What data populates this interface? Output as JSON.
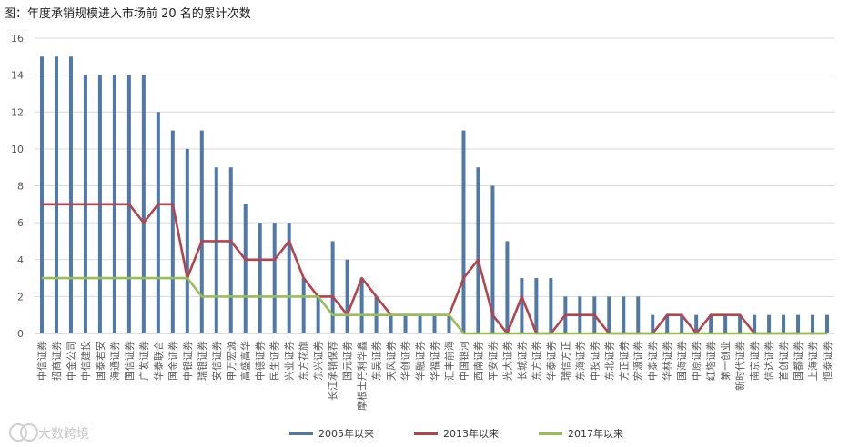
{
  "title": "图：年度承销规模进入市场前 20 名的累计次数",
  "watermark": "大数跨境",
  "colors": {
    "bar": "#4f79a8",
    "line2013": "#b5434a",
    "line2017": "#97bf56",
    "grid": "#d9d9d9",
    "axis": "#bfbfbf",
    "text": "#595959"
  },
  "legend": [
    {
      "name": "2005年以来",
      "color": "#4f79a8"
    },
    {
      "name": "2013年以来",
      "color": "#b5434a"
    },
    {
      "name": "2017年以来",
      "color": "#97bf56"
    }
  ],
  "chart_data": {
    "type": "bar",
    "title": "",
    "xlabel": "",
    "ylabel": "",
    "ylim": [
      0,
      16
    ],
    "yticks": [
      0,
      2,
      4,
      6,
      8,
      10,
      12,
      14,
      16
    ],
    "grid": true,
    "legend_position": "bottom",
    "categories": [
      "中信证券",
      "招商证券",
      "中金公司",
      "中信建投",
      "国泰君安",
      "海通证券",
      "国信证券",
      "广发证券",
      "华泰联合",
      "国金证券",
      "中银证券",
      "瑞银证券",
      "安信证券",
      "申万宏源",
      "高盛高华",
      "中德证券",
      "民生证券",
      "兴业证券",
      "东方花旗",
      "东兴证券",
      "长江承销保荐",
      "国元证券",
      "摩根士丹利华鑫",
      "东吴证券",
      "天风证券",
      "华创证券",
      "华融证券",
      "华福证券",
      "汇丰前海",
      "中国银河",
      "西南证券",
      "平安证券",
      "光大证券",
      "长城证券",
      "东方证券",
      "华泰证券",
      "瑞信方正",
      "东海证券",
      "中投证券",
      "东北证券",
      "方正证券",
      "宏源证券",
      "中泰证券",
      "华林证券",
      "国海证券",
      "中原证券",
      "红塔证券",
      "第一创业",
      "新时代证券",
      "南京证券",
      "信达证券",
      "首创证券",
      "国都证券",
      "上海证券",
      "恒泰证券"
    ],
    "series": [
      {
        "name": "2005年以来",
        "type": "bar",
        "values": [
          15,
          15,
          15,
          14,
          14,
          14,
          14,
          14,
          12,
          11,
          10,
          11,
          9,
          9,
          7,
          6,
          6,
          6,
          3,
          2,
          5,
          4,
          3,
          2,
          1,
          1,
          1,
          1,
          1,
          11,
          9,
          8,
          5,
          3,
          3,
          3,
          2,
          2,
          2,
          2,
          2,
          2,
          1,
          1,
          1,
          1,
          1,
          1,
          1,
          1,
          1,
          1,
          1,
          1,
          1
        ]
      },
      {
        "name": "2013年以来",
        "type": "line",
        "values": [
          7,
          7,
          7,
          7,
          7,
          7,
          7,
          6,
          7,
          7,
          3,
          5,
          5,
          5,
          4,
          4,
          4,
          5,
          3,
          2,
          2,
          1,
          3,
          2,
          1,
          1,
          1,
          1,
          1,
          3,
          4,
          1,
          0,
          2,
          0,
          0,
          1,
          1,
          1,
          0,
          0,
          0,
          0,
          1,
          1,
          0,
          1,
          1,
          1,
          0,
          0,
          0,
          0,
          0,
          0
        ]
      },
      {
        "name": "2017年以来",
        "type": "line",
        "values": [
          3,
          3,
          3,
          3,
          3,
          3,
          3,
          3,
          3,
          3,
          3,
          2,
          2,
          2,
          2,
          2,
          2,
          2,
          2,
          2,
          1,
          1,
          1,
          1,
          1,
          1,
          1,
          1,
          1,
          0,
          0,
          0,
          0,
          0,
          0,
          0,
          0,
          0,
          0,
          0,
          0,
          0,
          0,
          0,
          0,
          0,
          0,
          0,
          0,
          0,
          0,
          0,
          0,
          0,
          0
        ]
      }
    ]
  }
}
